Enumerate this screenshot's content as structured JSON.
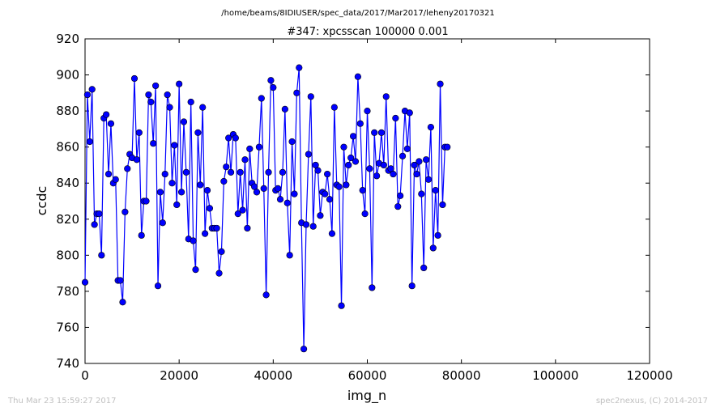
{
  "header": {
    "path": "/home/beams/8IDIUSER/spec_data/2017/Mar2017/leheny20170321",
    "title": "#347: xpcsscan 100000 0.001"
  },
  "footer": {
    "timestamp": "Thu Mar 23 15:59:27 2017",
    "credit": "spec2nexus, (C) 2014-2017"
  },
  "colors": {
    "series": "#0000ff",
    "axes": "#000000",
    "footer": "#c0c0c0"
  },
  "chart_data": {
    "type": "line",
    "markers": "circle",
    "title": "#347: xpcsscan 100000 0.001",
    "xlabel": "img_n",
    "ylabel": "ccdc",
    "xlim": [
      0,
      120000
    ],
    "ylim": [
      740,
      920
    ],
    "xticks": [
      0,
      20000,
      40000,
      60000,
      80000,
      100000,
      120000
    ],
    "xtick_labels": [
      "0",
      "20000",
      "40000",
      "60000",
      "80000",
      "100000",
      "120000"
    ],
    "yticks": [
      740,
      760,
      780,
      800,
      820,
      840,
      860,
      880,
      900,
      920
    ],
    "ytick_labels": [
      "740",
      "760",
      "780",
      "800",
      "820",
      "840",
      "860",
      "880",
      "900",
      "920"
    ],
    "grid": false,
    "x_start": 0,
    "x_step": 500,
    "y": [
      785,
      889,
      863,
      892,
      817,
      823,
      823,
      800,
      876,
      878,
      845,
      873,
      840,
      842,
      786,
      786,
      774,
      824,
      848,
      856,
      854,
      898,
      853,
      868,
      811,
      830,
      830,
      889,
      885,
      862,
      894,
      783,
      835,
      818,
      845,
      889,
      882,
      840,
      861,
      828,
      895,
      835,
      874,
      846,
      809,
      885,
      808,
      792,
      868,
      839,
      882,
      812,
      836,
      826,
      815,
      815,
      815,
      790,
      802,
      841,
      849,
      865,
      846,
      867,
      865,
      823,
      846,
      825,
      853,
      815,
      859,
      840,
      838,
      835,
      860,
      887,
      837,
      778,
      846,
      897,
      893,
      836,
      837,
      831,
      846,
      881,
      829,
      800,
      863,
      834,
      890,
      904,
      818,
      748,
      817,
      856,
      888,
      816,
      850,
      847,
      822,
      835,
      834,
      845,
      831,
      812,
      882,
      839,
      838,
      772,
      860,
      839,
      850,
      854,
      866,
      852,
      899,
      873,
      836,
      823,
      880,
      848,
      782,
      868,
      844,
      851,
      868,
      850,
      888,
      847,
      848,
      845,
      876,
      827,
      833,
      855,
      880,
      859,
      879,
      783,
      850,
      845,
      852,
      834,
      793,
      853,
      842,
      871,
      804,
      836,
      811,
      895,
      828,
      860,
      860
    ]
  }
}
